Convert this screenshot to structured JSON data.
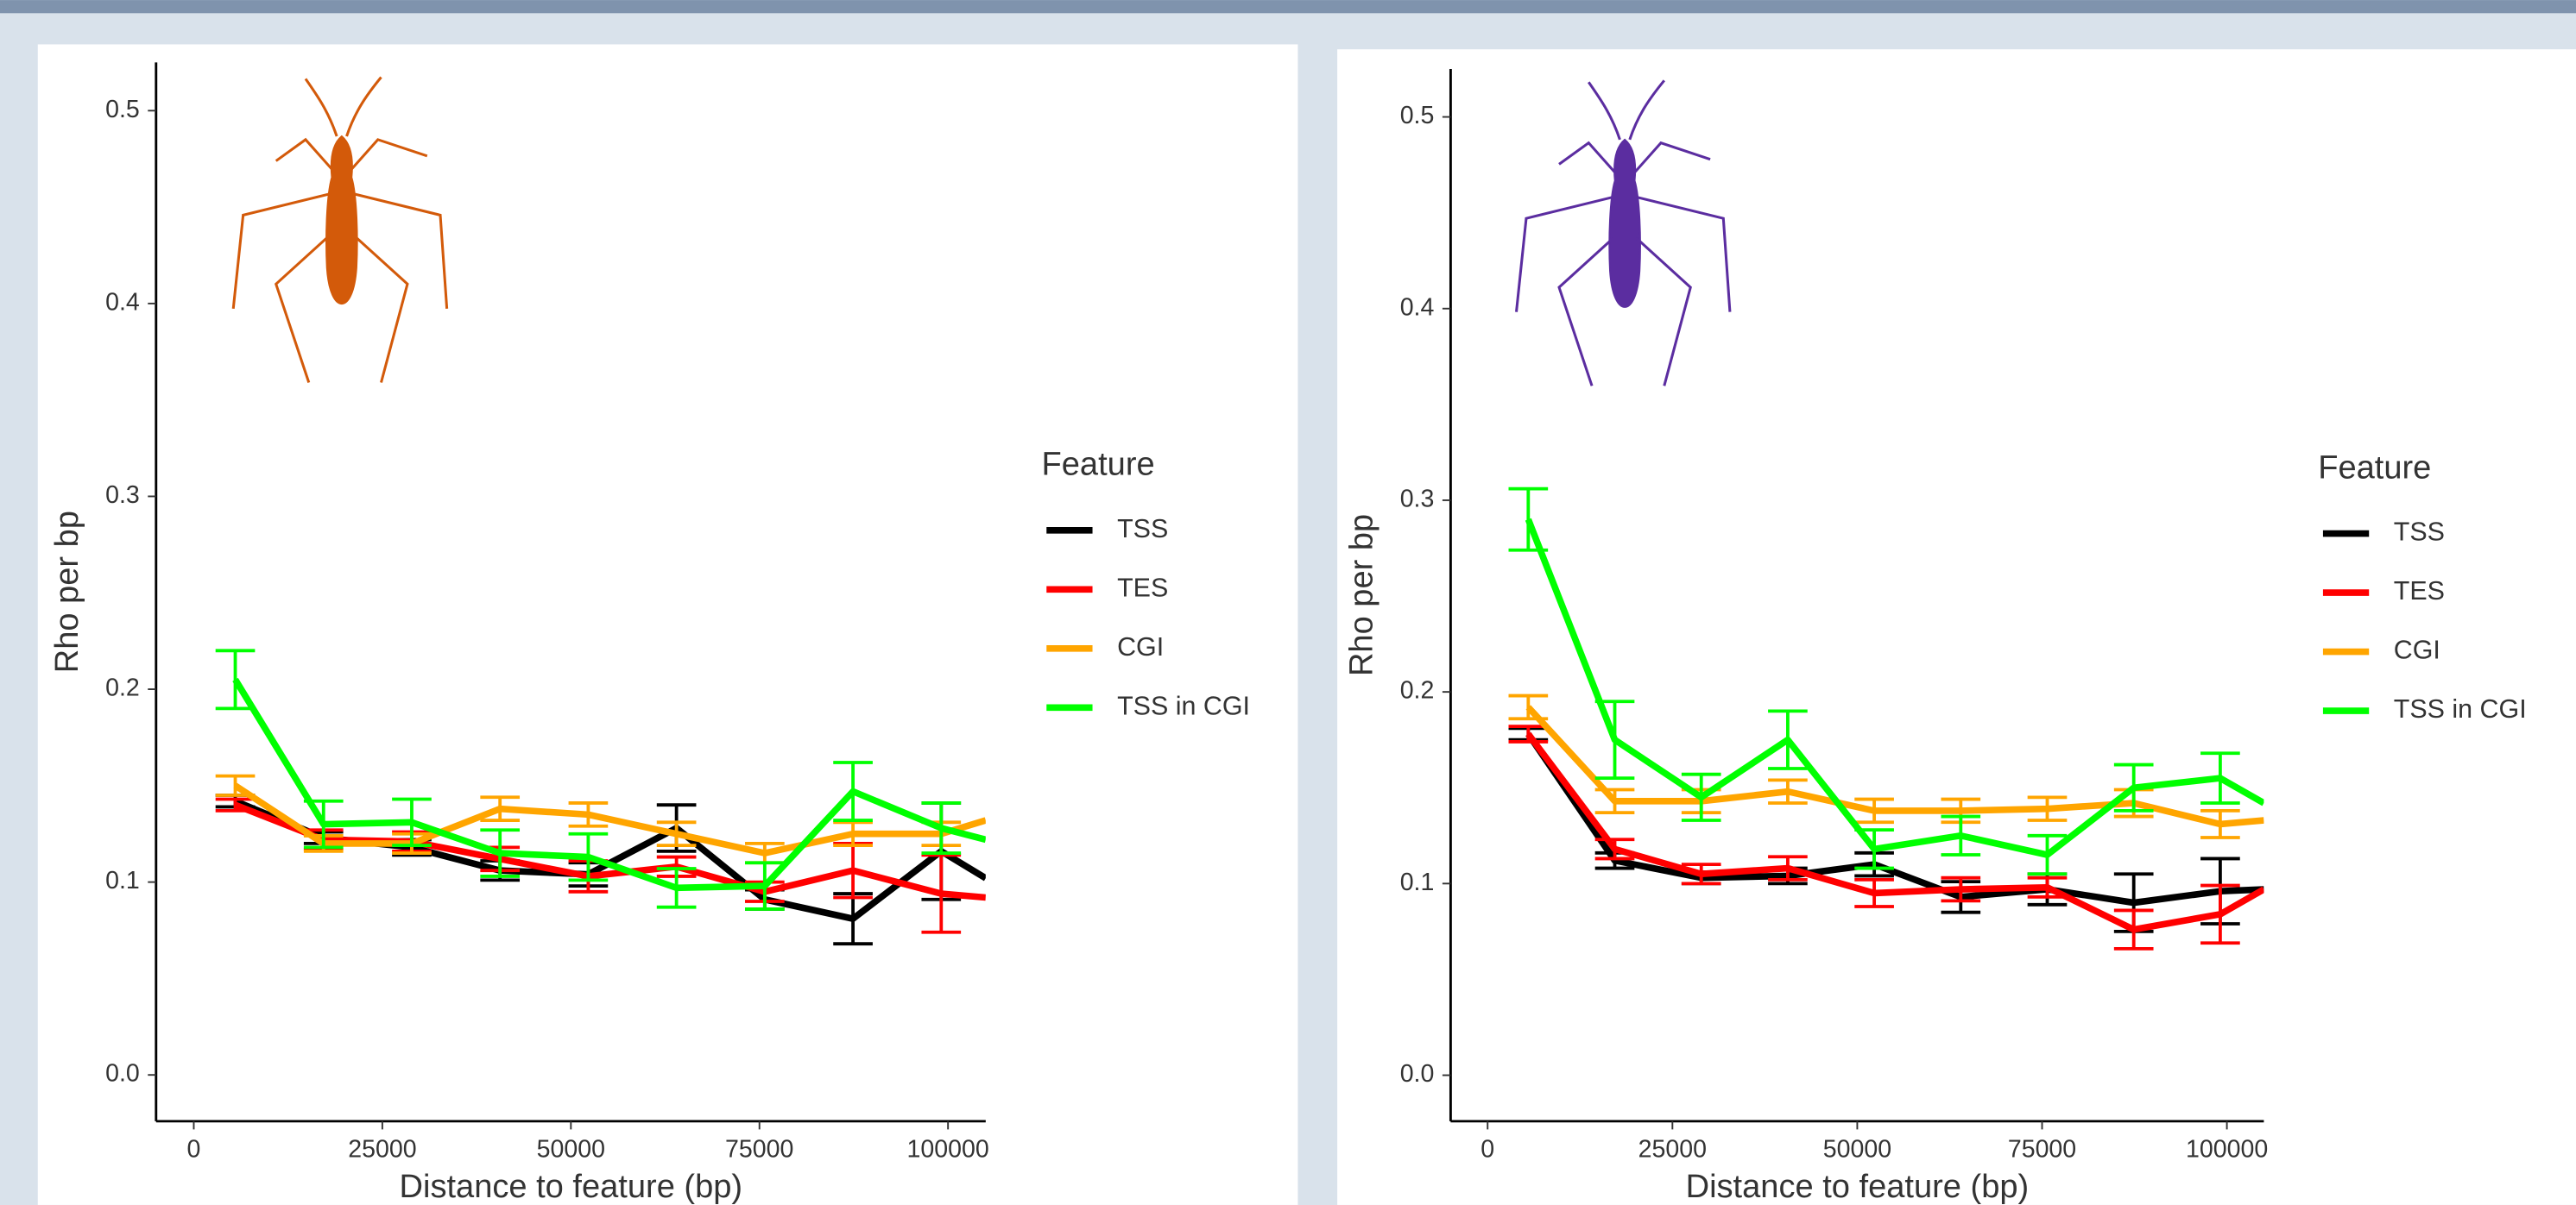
{
  "chart_data": [
    {
      "type": "line",
      "xlabel": "Distance to feature (bp)",
      "ylabel": "Rho per bp",
      "legend_title": "Feature",
      "x": [
        5500,
        17200,
        28900,
        40600,
        52300,
        64000,
        75700,
        87400,
        99100,
        105000
      ],
      "xlim": [
        -5000,
        105000
      ],
      "xticks": [
        0,
        25000,
        50000,
        75000,
        100000
      ],
      "ylim": [
        -0.024,
        0.525
      ],
      "yticks": [
        {
          "value": 0,
          "label": "0.0"
        },
        0.1,
        0.2,
        0.3,
        0.4,
        0.5
      ],
      "series": [
        {
          "name": "TSS",
          "color": "#000000",
          "values": [
            0.142,
            0.123,
            0.118,
            0.106,
            0.104,
            0.128,
            0.091,
            0.081,
            0.116,
            0.102
          ],
          "errors": [
            0.003,
            0.003,
            0.004,
            0.005,
            0.006,
            0.012,
            0.005,
            0.013,
            0.025,
            null
          ]
        },
        {
          "name": "TES",
          "color": "#ff0000",
          "values": [
            0.14,
            0.122,
            0.121,
            0.112,
            0.103,
            0.108,
            0.095,
            0.106,
            0.094,
            0.092
          ],
          "errors": [
            0.003,
            0.005,
            0.005,
            0.006,
            0.008,
            0.005,
            0.005,
            0.014,
            0.02,
            null
          ]
        },
        {
          "name": "CGI",
          "color": "#ffa500",
          "values": [
            0.15,
            0.12,
            0.12,
            0.138,
            0.135,
            0.125,
            0.115,
            0.125,
            0.125,
            0.132
          ],
          "errors": [
            0.005,
            0.004,
            0.005,
            0.006,
            0.006,
            0.006,
            0.005,
            0.006,
            0.006,
            null
          ]
        },
        {
          "name": "TSS in CGI",
          "color": "#00ff00",
          "values": [
            0.205,
            0.13,
            0.131,
            0.115,
            0.113,
            0.097,
            0.098,
            0.147,
            0.128,
            0.122
          ],
          "errors": [
            0.015,
            0.012,
            0.012,
            0.012,
            0.012,
            0.01,
            0.012,
            0.015,
            0.013,
            null
          ]
        }
      ]
    },
    {
      "type": "line",
      "xlabel": "Distance to feature (bp)",
      "ylabel": "Rho per bp",
      "legend_title": "Feature",
      "x": [
        5500,
        17200,
        28900,
        40600,
        52300,
        64000,
        75700,
        87400,
        99100,
        105000
      ],
      "xlim": [
        -5000,
        105000
      ],
      "xticks": [
        0,
        25000,
        50000,
        75000,
        100000
      ],
      "ylim": [
        -0.024,
        0.525
      ],
      "yticks": [
        {
          "value": 0,
          "label": "0.0"
        },
        0.1,
        0.2,
        0.3,
        0.4,
        0.5
      ],
      "series": [
        {
          "name": "TSS",
          "color": "#000000",
          "values": [
            0.178,
            0.112,
            0.103,
            0.104,
            0.11,
            0.093,
            0.097,
            0.09,
            0.096,
            0.097
          ],
          "errors": [
            0.003,
            0.004,
            0.003,
            0.004,
            0.006,
            0.008,
            0.008,
            0.015,
            0.017,
            null
          ]
        },
        {
          "name": "TES",
          "color": "#ff0000",
          "values": [
            0.178,
            0.118,
            0.105,
            0.108,
            0.095,
            0.097,
            0.098,
            0.076,
            0.084,
            0.097
          ],
          "errors": [
            0.004,
            0.005,
            0.005,
            0.006,
            0.007,
            0.006,
            0.005,
            0.01,
            0.015,
            null
          ]
        },
        {
          "name": "CGI",
          "color": "#ffa500",
          "values": [
            0.192,
            0.143,
            0.143,
            0.148,
            0.138,
            0.138,
            0.139,
            0.142,
            0.131,
            0.133
          ],
          "errors": [
            0.006,
            0.006,
            0.006,
            0.006,
            0.006,
            0.006,
            0.006,
            0.007,
            0.007,
            null
          ]
        },
        {
          "name": "TSS in CGI",
          "color": "#00ff00",
          "values": [
            0.29,
            0.175,
            0.145,
            0.175,
            0.118,
            0.125,
            0.115,
            0.15,
            0.155,
            0.142
          ],
          "errors": [
            0.016,
            0.02,
            0.012,
            0.015,
            0.01,
            0.01,
            0.01,
            0.012,
            0.013,
            null
          ]
        }
      ]
    }
  ]
}
